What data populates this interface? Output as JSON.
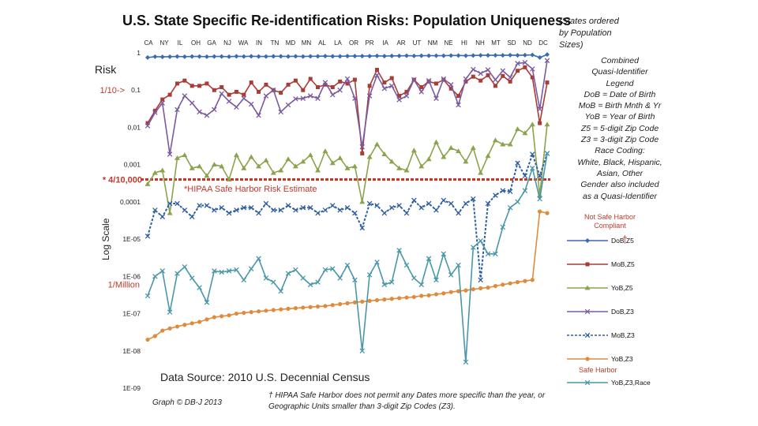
{
  "chart_data": {
    "type": "line",
    "title": "U.S. State Specific Re-identification Risks: Population Uniqueness",
    "ordering_note": "(States ordered by Population Sizes)",
    "ylabel": "Risk",
    "yscale_label": "Log  Scale",
    "yscale": "log",
    "ylim": [
      1e-09,
      1
    ],
    "y_ticks": [
      "1",
      "0,1",
      "0,01",
      "0,001",
      "0,0001",
      "1E-05",
      "1E-06",
      "1E-07",
      "1E-08",
      "1E-09"
    ],
    "y_annotations": [
      {
        "text": "1/10->",
        "value": 0.1
      },
      {
        "text": "* 4/10,000",
        "value": 0.0004
      },
      {
        "text": "1/Million",
        "value": 1e-06
      }
    ],
    "x_labels_top": [
      "CA",
      "NY",
      "IL",
      "OH",
      "GA",
      "NJ",
      "WA",
      "IN",
      "TN",
      "MD",
      "MN",
      "AL",
      "LA",
      "OR",
      "PR",
      "IA",
      "AR",
      "UT",
      "NM",
      "NE",
      "HI",
      "NH",
      "MT",
      "SD",
      "ND",
      "DC"
    ],
    "hipaa_line": {
      "value": 0.0004,
      "label": "*HIPAA Safe Harbor Risk Estimate"
    },
    "legend_title": "Combined Quasi-Identifier Legend",
    "legend_text": [
      "Combined",
      "Quasi-Identifier",
      "Legend",
      "DoB = Date of Birth",
      "MoB = Birth Mnth & Yr",
      "YoB = Year of Birth",
      "Z5 = 5-digit Zip Code",
      "Z3 = 3-digit Zip Code",
      "Race Coding:",
      "White, Black, Hispanic,",
      "Asian, Other",
      "Gender also included",
      "as a Quasi-Identifier"
    ],
    "not_safe_harbor_label": [
      "Not Safe Harbor",
      "Compliant"
    ],
    "safe_harbor_label": "Safe Harbor",
    "dagger": "†",
    "series": [
      {
        "name": "DoB,Z5",
        "color": "#3a6ab0",
        "marker": "diamond",
        "dash": false,
        "values": [
          0.75,
          0.79,
          0.78,
          0.79,
          0.8,
          0.79,
          0.8,
          0.8,
          0.79,
          0.8,
          0.8,
          0.79,
          0.81,
          0.8,
          0.81,
          0.8,
          0.8,
          0.81,
          0.81,
          0.8,
          0.81,
          0.8,
          0.81,
          0.81,
          0.82,
          0.81,
          0.81,
          0.82,
          0.82,
          0.82,
          0.82,
          0.83,
          0.82,
          0.83,
          0.83,
          0.84,
          0.83,
          0.84,
          0.84,
          0.84,
          0.84,
          0.85,
          0.85,
          0.84,
          0.85,
          0.86,
          0.86,
          0.86,
          0.86,
          0.87,
          0.86,
          0.87,
          0.88,
          0.75,
          0.9
        ]
      },
      {
        "name": "MoB,Z5",
        "color": "#a83c36",
        "marker": "square",
        "dash": false,
        "values": [
          0.013,
          0.028,
          0.056,
          0.075,
          0.15,
          0.18,
          0.13,
          0.13,
          0.15,
          0.1,
          0.12,
          0.075,
          0.09,
          0.075,
          0.16,
          0.09,
          0.14,
          0.1,
          0.085,
          0.14,
          0.18,
          0.1,
          0.2,
          0.12,
          0.14,
          0.12,
          0.17,
          0.15,
          0.19,
          0.002,
          0.13,
          0.35,
          0.16,
          0.21,
          0.07,
          0.09,
          0.19,
          0.12,
          0.17,
          0.15,
          0.19,
          0.11,
          0.07,
          0.17,
          0.23,
          0.18,
          0.25,
          0.13,
          0.24,
          0.17,
          0.33,
          0.41,
          0.22,
          0.013,
          0.16
        ]
      },
      {
        "name": "YoB,Z5",
        "color": "#8ba34c",
        "marker": "triangle",
        "dash": false,
        "values": 0,
        "values_list": [
          0.0003,
          0.0006,
          0.0007,
          5e-05,
          0.0015,
          0.0018,
          0.0008,
          0.0009,
          0.0005,
          0.001,
          0.0009,
          0.0004,
          0.0018,
          0.0008,
          0.0016,
          0.0009,
          0.0013,
          0.0006,
          0.0007,
          0.0014,
          0.0009,
          0.0012,
          0.0018,
          0.0007,
          0.0023,
          0.0011,
          0.0015,
          0.0008,
          0.0009,
          0.0001,
          0.0016,
          0.0035,
          0.0019,
          0.0012,
          0.0008,
          0.0007,
          0.0024,
          0.0009,
          0.0014,
          0.004,
          0.0016,
          0.0028,
          0.0023,
          0.0012,
          0.0028,
          0.0006,
          0.0017,
          0.0045,
          0.0035,
          0.0035,
          0.009,
          0.007,
          0.012,
          0.00015,
          0.012
        ]
      },
      {
        "name": "DoB,Z3",
        "color": "#7a5aa0",
        "marker": "x",
        "dash": false,
        "values": [
          0.011,
          0.025,
          0.045,
          0.0019,
          0.03,
          0.07,
          0.045,
          0.026,
          0.021,
          0.03,
          0.08,
          0.05,
          0.035,
          0.06,
          0.042,
          0.021,
          0.07,
          0.1,
          0.026,
          0.04,
          0.058,
          0.06,
          0.07,
          0.06,
          0.16,
          0.075,
          0.1,
          0.2,
          0.06,
          0.003,
          0.07,
          0.25,
          0.11,
          0.13,
          0.055,
          0.07,
          0.19,
          0.09,
          0.18,
          0.06,
          0.2,
          0.14,
          0.04,
          0.2,
          0.36,
          0.28,
          0.35,
          0.19,
          0.33,
          0.22,
          0.52,
          0.55,
          0.37,
          0.031,
          0.62
        ]
      },
      {
        "name": "MoB,Z3",
        "color": "#2f5f9e",
        "marker": "x",
        "dash": true,
        "values": [
          1.2e-05,
          6e-05,
          4e-05,
          9e-05,
          9e-05,
          6e-05,
          4e-05,
          8e-05,
          8e-05,
          6e-05,
          7e-05,
          5e-05,
          6e-05,
          7e-05,
          7e-05,
          5e-05,
          9e-05,
          6e-05,
          6e-05,
          8e-05,
          6e-05,
          7e-05,
          7e-05,
          5e-05,
          6e-05,
          8e-05,
          6e-05,
          7e-05,
          5e-05,
          2e-05,
          9e-05,
          8e-05,
          5e-05,
          7e-05,
          8e-05,
          5e-05,
          0.00011,
          7e-05,
          9e-05,
          6e-05,
          0.00011,
          9e-05,
          5e-05,
          9e-05,
          0.00012,
          8e-07,
          9e-05,
          0.00015,
          0.0002,
          0.00019,
          0.0011,
          0.0005,
          0.0019,
          0.0005,
          0.002
        ]
      },
      {
        "name": "YoB,Z3",
        "color": "#e08a3c",
        "marker": "circle",
        "dash": false,
        "values": [
          2e-08,
          2.5e-08,
          3.5e-08,
          4e-08,
          4.5e-08,
          5e-08,
          5.5e-08,
          6e-08,
          7e-08,
          8e-08,
          8.5e-08,
          9e-08,
          1e-07,
          1.05e-07,
          1.1e-07,
          1.15e-07,
          1.2e-07,
          1.25e-07,
          1.3e-07,
          1.35e-07,
          1.4e-07,
          1.45e-07,
          1.5e-07,
          1.55e-07,
          1.6e-07,
          1.7e-07,
          1.8e-07,
          1.9e-07,
          2e-07,
          2.1e-07,
          2.2e-07,
          2.3e-07,
          2.4e-07,
          2.5e-07,
          2.6e-07,
          2.7e-07,
          2.8e-07,
          3e-07,
          3.1e-07,
          3.3e-07,
          3.5e-07,
          3.8e-07,
          4e-07,
          4.2e-07,
          4.5e-07,
          4.8e-07,
          5e-07,
          5.5e-07,
          6e-07,
          6.5e-07,
          7e-07,
          7.5e-07,
          8e-07,
          5.5e-05,
          5e-05
        ]
      },
      {
        "name": "YoB,Z3,Race",
        "color": "#4a97a8",
        "marker": "x",
        "dash": false,
        "values": [
          3e-07,
          1e-06,
          1.4e-06,
          1.1e-07,
          1.2e-06,
          1.8e-06,
          9e-07,
          5e-07,
          2e-07,
          1.4e-06,
          1.3e-06,
          1.4e-06,
          1.5e-06,
          8e-07,
          1.6e-06,
          3e-06,
          9e-07,
          7e-07,
          4e-07,
          1.2e-06,
          1.5e-06,
          9e-07,
          6e-07,
          7e-07,
          1.5e-06,
          1.6e-06,
          9e-07,
          2e-06,
          8e-07,
          1e-08,
          1.1e-06,
          2.4e-06,
          6e-07,
          7e-07,
          5e-06,
          2e-06,
          9e-07,
          6e-07,
          3e-06,
          8e-07,
          4e-06,
          1.1e-06,
          2e-06,
          5e-09,
          6e-06,
          9e-06,
          4e-06,
          4e-06,
          2.1e-05,
          7e-05,
          0.0001,
          0.0002,
          0.0008,
          0.00012,
          0.002
        ]
      }
    ]
  },
  "labels": {
    "source": "Data Source: 2010 U.S. Decennial Census",
    "credit": "Graph ©  DB-J 2013",
    "footnote": "† HIPAA Safe Harbor does not permit any Dates more specific than the year, or Geographic Units smaller than 3-digit Zip Codes (Z3)."
  }
}
